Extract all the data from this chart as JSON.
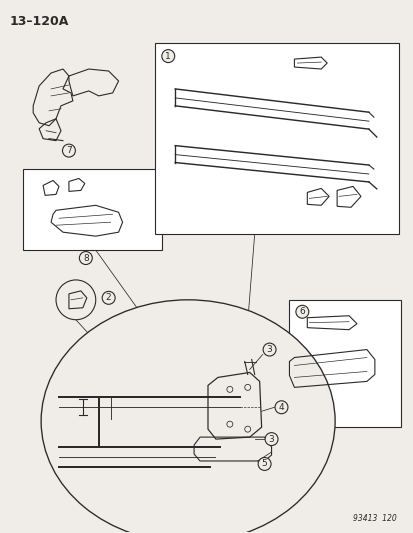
{
  "title_code": "13–120A",
  "footer_code": "93413  120",
  "bg_color": "#f0ede8",
  "line_color": "#2a2a2a",
  "figsize": [
    4.14,
    5.33
  ],
  "dpi": 100
}
